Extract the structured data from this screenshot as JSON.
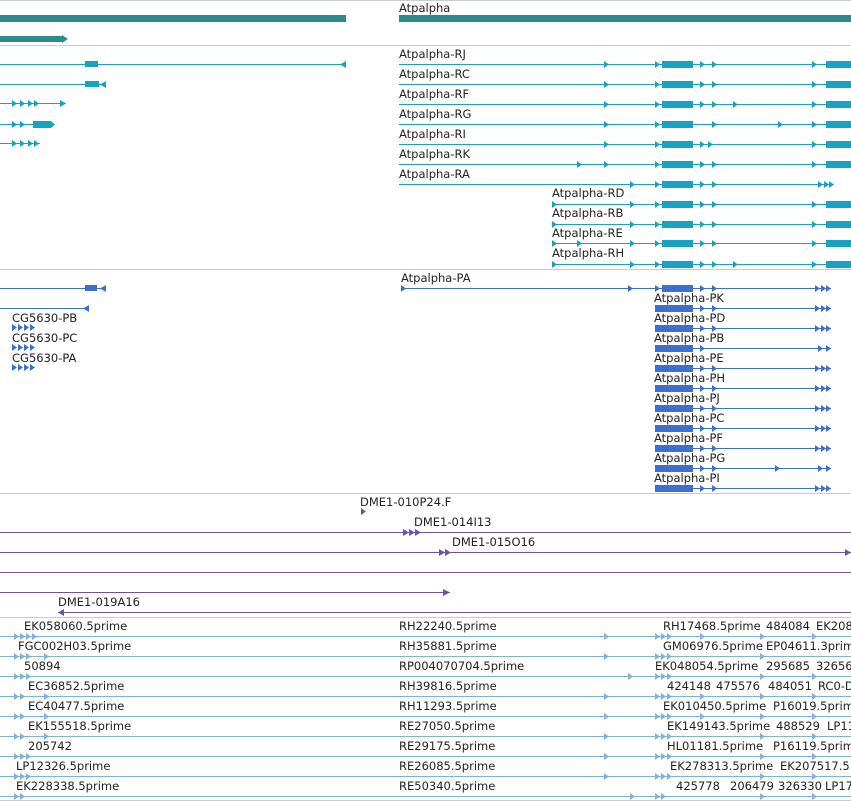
{
  "colors": {
    "gene": "#2e8b8b",
    "transcript": "#17a2c2",
    "protein": "#3d6fd1",
    "clone": "#6b52b0",
    "est": "#7fb3dc",
    "divider": "#cccccc",
    "label": "#222222"
  },
  "tracks": {
    "genes": {
      "labels": [
        "Atpalpha"
      ]
    },
    "transcripts": {
      "labels": [
        "Atpalpha-RJ",
        "Atpalpha-RC",
        "Atpalpha-RF",
        "Atpalpha-RG",
        "Atpalpha-RI",
        "Atpalpha-RK",
        "Atpalpha-RA",
        "Atpalpha-RD",
        "Atpalpha-RB",
        "Atpalpha-RE",
        "Atpalpha-RH"
      ]
    },
    "proteins": {
      "labels": [
        "Atpalpha-PA",
        "Atpalpha-PK",
        "Atpalpha-PD",
        "Atpalpha-PB",
        "Atpalpha-PE",
        "Atpalpha-PH",
        "Atpalpha-PJ",
        "Atpalpha-PC",
        "Atpalpha-PF",
        "Atpalpha-PG",
        "Atpalpha-PI",
        "CG5630-PB",
        "CG5630-PC",
        "CG5630-PA"
      ]
    },
    "clones": {
      "labels": [
        "DME1-010P24.F",
        "DME1-014I13",
        "DME1-015O16",
        "DME1-019A16"
      ]
    },
    "ests": {
      "labels": [
        "EK058060.5prime",
        "FGC002H03.5prime",
        "50894",
        "EC36852.5prime",
        "EC40477.5prime",
        "EK155518.5prime",
        "205742",
        "LP12326.5prime",
        "EK228338.5prime",
        "RH22240.5prime",
        "RH35881.5prime",
        "RP004070704.5prime",
        "RH39816.5prime",
        "RH11293.5prime",
        "RE27050.5prime",
        "RE29175.5prime",
        "RE26085.5prime",
        "RE50340.5prime",
        "RH17468.5prime",
        "484084",
        "EK208",
        "GM06976.5prime",
        "EP04611.3prime",
        "EK048054.5prime",
        "295685",
        "32656",
        "424148",
        "475576",
        "484051",
        "RC0-D",
        "EK010450.5prime",
        "P16019.5prime",
        "EK149143.5prime",
        "488529",
        "LP11",
        "HL01181.5prime",
        "P16119.5prime",
        "EK278313.5prime",
        "EK207517.5",
        "425778",
        "206479",
        "326330",
        "LP17"
      ]
    }
  }
}
